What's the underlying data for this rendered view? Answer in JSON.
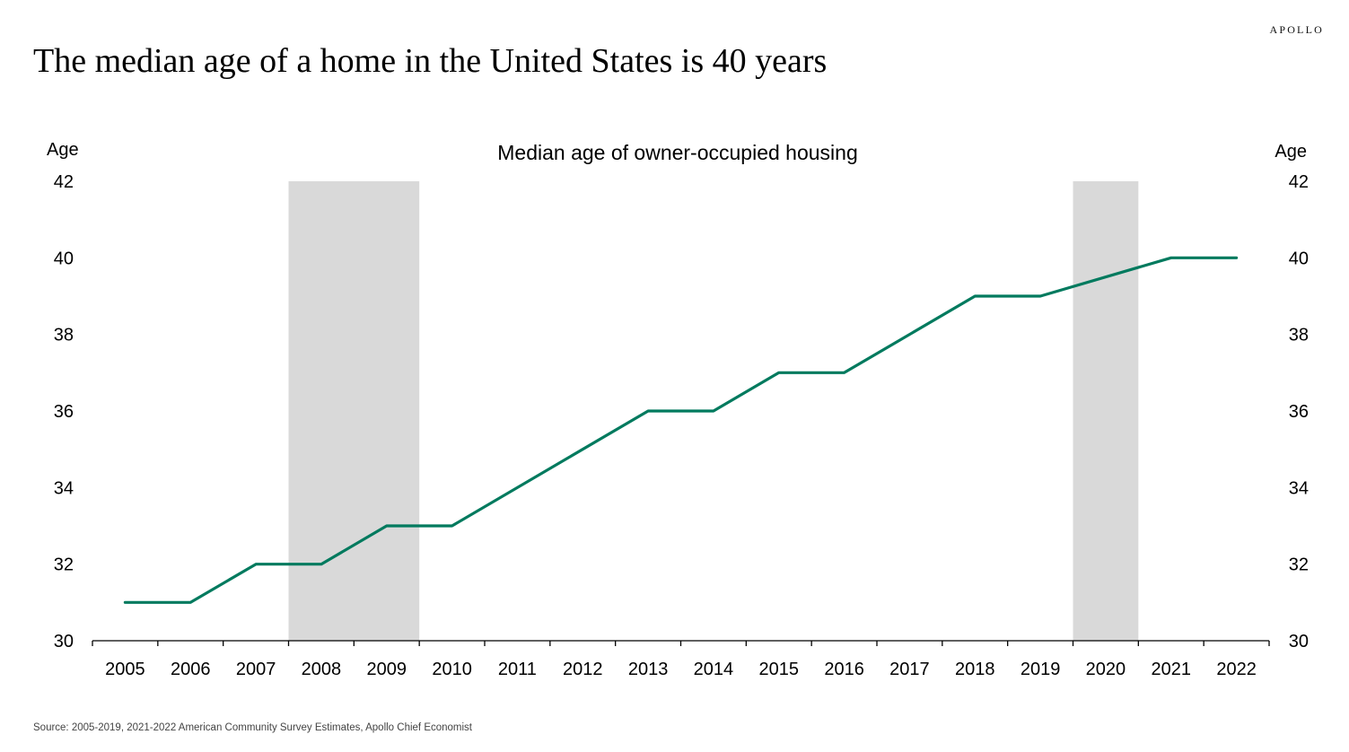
{
  "brand": "APOLLO",
  "headline": "The median age of a home in the United States is 40 years",
  "source": "Source: 2005-2019, 2021-2022 American Community Survey Estimates, Apollo Chief Economist",
  "colors": {
    "line": "#007a5e",
    "shade": "#d9d9d9",
    "axis": "#000000"
  },
  "chart_data": {
    "type": "line",
    "title": "Median age of owner-occupied housing",
    "ylabel_left": "Age",
    "ylabel_right": "Age",
    "x": [
      "2005",
      "2006",
      "2007",
      "2008",
      "2009",
      "2010",
      "2011",
      "2012",
      "2013",
      "2014",
      "2015",
      "2016",
      "2017",
      "2018",
      "2019",
      "2020",
      "2021",
      "2022"
    ],
    "series": [
      {
        "values": [
          31,
          31,
          32,
          32,
          33,
          33,
          null,
          null,
          36,
          36,
          37,
          37,
          null,
          39,
          39,
          null,
          40,
          40
        ]
      }
    ],
    "ylim": [
      30,
      42
    ],
    "yticks": [
      30,
      32,
      34,
      36,
      38,
      40,
      42
    ],
    "shaded_periods": [
      [
        "2008",
        "2009"
      ],
      [
        "2020",
        "2020"
      ]
    ],
    "grid": false,
    "legend": "none"
  }
}
